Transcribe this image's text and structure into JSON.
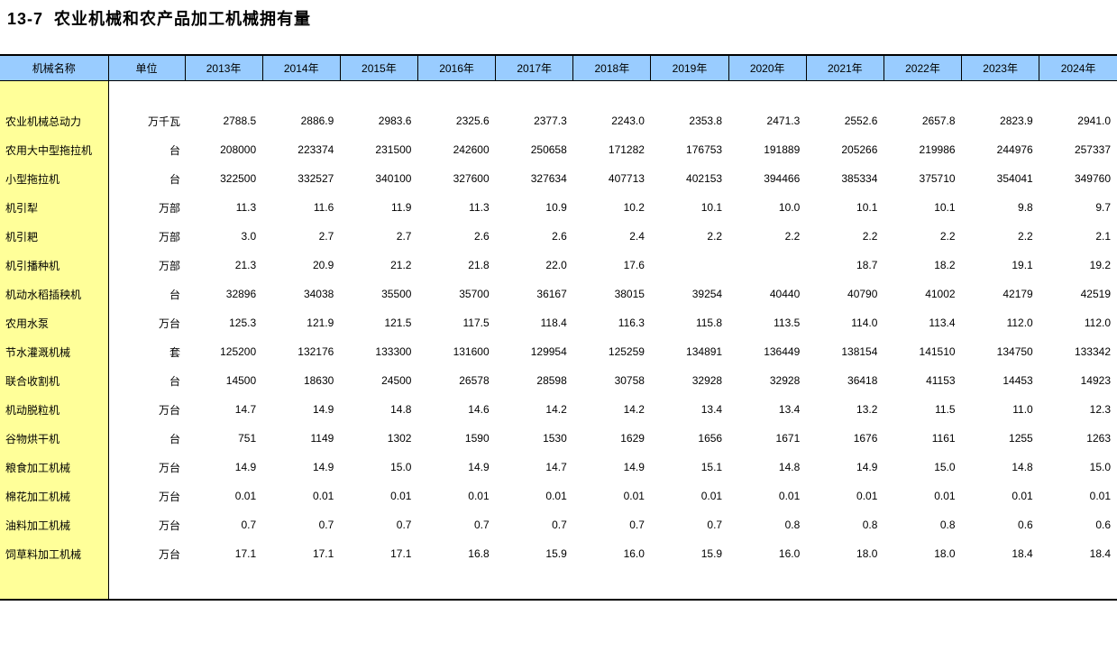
{
  "title": "13-7  农业机械和农产品加工机械拥有量",
  "colors": {
    "header_bg": "#99CCFF",
    "name_col_bg": "#FFFF99",
    "border": "#000000",
    "text": "#000000"
  },
  "table": {
    "columns": [
      "机械名称",
      "单位",
      "2013年",
      "2014年",
      "2015年",
      "2016年",
      "2017年",
      "2018年",
      "2019年",
      "2020年",
      "2021年",
      "2022年",
      "2023年",
      "2024年"
    ],
    "rows": [
      {
        "name": "农业机械总动力",
        "unit": "万千瓦",
        "values": [
          "2788.5",
          "2886.9",
          "2983.6",
          "2325.6",
          "2377.3",
          "2243.0",
          "2353.8",
          "2471.3",
          "2552.6",
          "2657.8",
          "2823.9",
          "2941.0"
        ]
      },
      {
        "name": "农用大中型拖拉机",
        "unit": "台",
        "values": [
          "208000",
          "223374",
          "231500",
          "242600",
          "250658",
          "171282",
          "176753",
          "191889",
          "205266",
          "219986",
          "244976",
          "257337"
        ]
      },
      {
        "name": "小型拖拉机",
        "unit": "台",
        "values": [
          "322500",
          "332527",
          "340100",
          "327600",
          "327634",
          "407713",
          "402153",
          "394466",
          "385334",
          "375710",
          "354041",
          "349760"
        ]
      },
      {
        "name": "机引犁",
        "unit": "万部",
        "values": [
          "11.3",
          "11.6",
          "11.9",
          "11.3",
          "10.9",
          "10.2",
          "10.1",
          "10.0",
          "10.1",
          "10.1",
          "9.8",
          "9.7"
        ]
      },
      {
        "name": "机引耙",
        "unit": "万部",
        "values": [
          "3.0",
          "2.7",
          "2.7",
          "2.6",
          "2.6",
          "2.4",
          "2.2",
          "2.2",
          "2.2",
          "2.2",
          "2.2",
          "2.1"
        ]
      },
      {
        "name": "机引播种机",
        "unit": "万部",
        "values": [
          "21.3",
          "20.9",
          "21.2",
          "21.8",
          "22.0",
          "17.6",
          "",
          "",
          "18.7",
          "18.2",
          "19.1",
          "19.2"
        ]
      },
      {
        "name": "机动水稻插秧机",
        "unit": "台",
        "values": [
          "32896",
          "34038",
          "35500",
          "35700",
          "36167",
          "38015",
          "39254",
          "40440",
          "40790",
          "41002",
          "42179",
          "42519"
        ]
      },
      {
        "name": "农用水泵",
        "unit": "万台",
        "values": [
          "125.3",
          "121.9",
          "121.5",
          "117.5",
          "118.4",
          "116.3",
          "115.8",
          "113.5",
          "114.0",
          "113.4",
          "112.0",
          "112.0"
        ]
      },
      {
        "name": "节水灌溉机械",
        "unit": "套",
        "values": [
          "125200",
          "132176",
          "133300",
          "131600",
          "129954",
          "125259",
          "134891",
          "136449",
          "138154",
          "141510",
          "134750",
          "133342"
        ]
      },
      {
        "name": "联合收割机",
        "unit": "台",
        "values": [
          "14500",
          "18630",
          "24500",
          "26578",
          "28598",
          "30758",
          "32928",
          "32928",
          "36418",
          "41153",
          "14453",
          "14923"
        ]
      },
      {
        "name": "机动脱粒机",
        "unit": "万台",
        "values": [
          "14.7",
          "14.9",
          "14.8",
          "14.6",
          "14.2",
          "14.2",
          "13.4",
          "13.4",
          "13.2",
          "11.5",
          "11.0",
          "12.3"
        ]
      },
      {
        "name": "谷物烘干机",
        "unit": "台",
        "values": [
          "751",
          "1149",
          "1302",
          "1590",
          "1530",
          "1629",
          "1656",
          "1671",
          "1676",
          "1161",
          "1255",
          "1263"
        ]
      },
      {
        "name": "粮食加工机械",
        "unit": "万台",
        "values": [
          "14.9",
          "14.9",
          "15.0",
          "14.9",
          "14.7",
          "14.9",
          "15.1",
          "14.8",
          "14.9",
          "15.0",
          "14.8",
          "15.0"
        ]
      },
      {
        "name": "棉花加工机械",
        "unit": "万台",
        "values": [
          "0.01",
          "0.01",
          "0.01",
          "0.01",
          "0.01",
          "0.01",
          "0.01",
          "0.01",
          "0.01",
          "0.01",
          "0.01",
          "0.01"
        ]
      },
      {
        "name": "油料加工机械",
        "unit": "万台",
        "values": [
          "0.7",
          "0.7",
          "0.7",
          "0.7",
          "0.7",
          "0.7",
          "0.7",
          "0.8",
          "0.8",
          "0.8",
          "0.6",
          "0.6"
        ]
      },
      {
        "name": "饲草料加工机械",
        "unit": "万台",
        "values": [
          "17.1",
          "17.1",
          "17.1",
          "16.8",
          "15.9",
          "16.0",
          "15.9",
          "16.0",
          "18.0",
          "18.0",
          "18.4",
          "18.4"
        ]
      }
    ]
  }
}
